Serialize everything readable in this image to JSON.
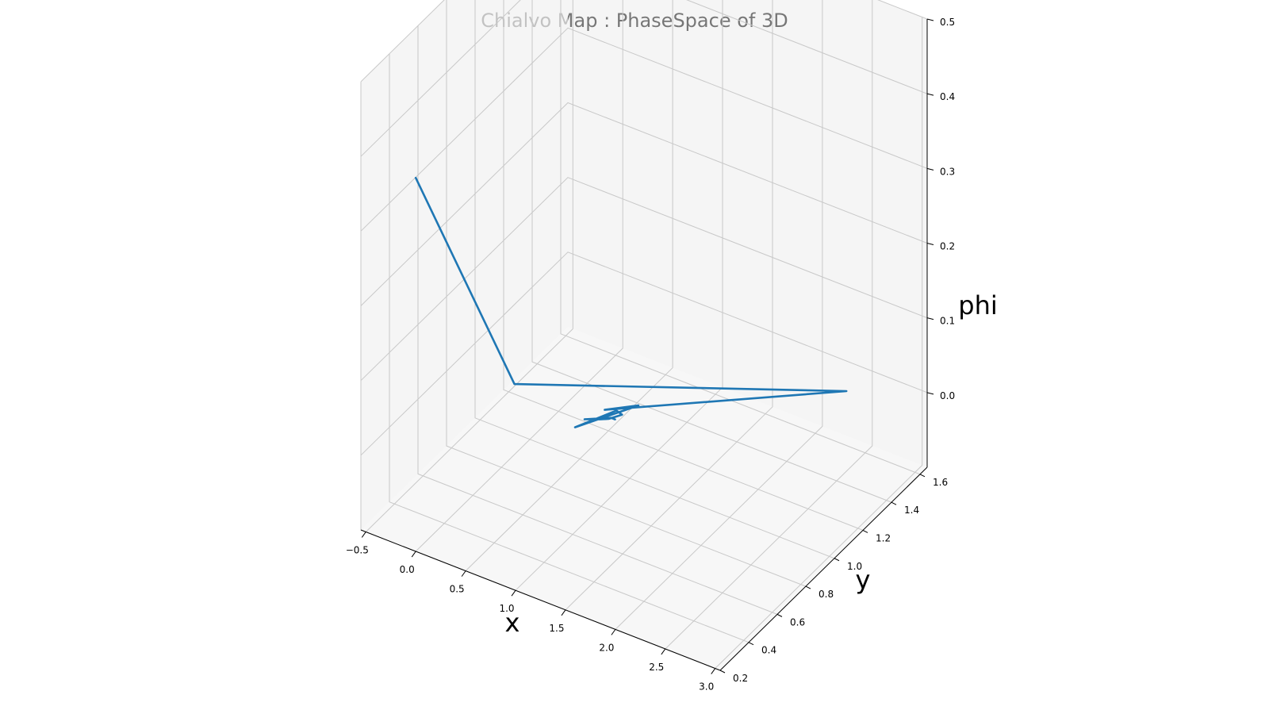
{
  "chart_data": {
    "type": "line",
    "projection": "3d",
    "title": "Chialvo Map : PhaseSpace of 3D",
    "xlabel": "x",
    "ylabel": "y",
    "zlabel": "phi",
    "grid": true,
    "xlim": [
      -0.55,
      3.05
    ],
    "ylim": [
      0.2,
      1.65
    ],
    "zlim": [
      -0.1,
      0.5
    ],
    "x_ticks": [
      "−0.5",
      "0.0",
      "0.5",
      "1.0",
      "1.5",
      "2.0",
      "2.5",
      "3.0"
    ],
    "y_ticks": [
      "0.2",
      "0.4",
      "0.6",
      "0.8",
      "1.0",
      "1.2",
      "1.4",
      "1.6"
    ],
    "z_ticks": [
      "0.0",
      "0.1",
      "0.2",
      "0.3",
      "0.4",
      "0.5"
    ],
    "series": [
      {
        "color": "#1f77b4",
        "x": [
          0.0,
          0.03,
          2.57,
          0.92,
          1.13,
          0.78,
          1.01,
          1.08,
          0.96,
          0.9,
          0.79,
          0.97,
          1.0,
          1.01
        ],
        "y": [
          0.2,
          0.87,
          1.42,
          0.88,
          0.97,
          0.77,
          0.9,
          0.89,
          0.88,
          0.86,
          0.83,
          0.89,
          0.89,
          0.89
        ],
        "z": [
          0.4,
          0.0,
          0.02,
          0.01,
          0.01,
          0.0,
          0.01,
          0.01,
          0.0,
          0.0,
          0.0,
          0.0,
          0.0,
          0.0
        ]
      }
    ]
  }
}
